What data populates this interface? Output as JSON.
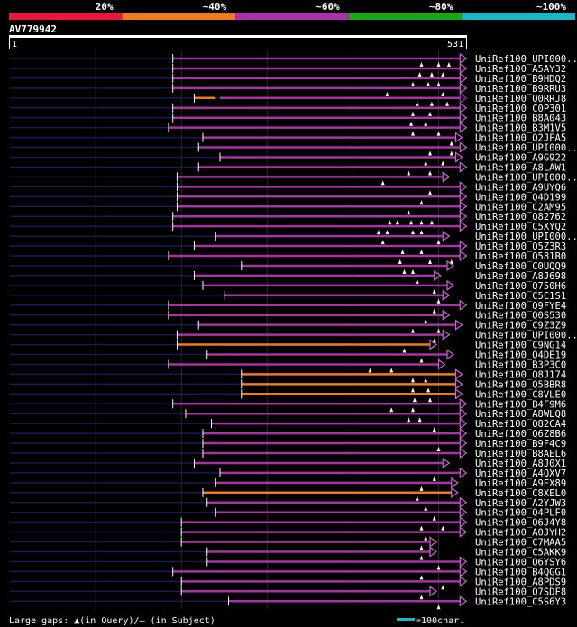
{
  "chart_data": {
    "type": "alignment-overview",
    "query_id": "AV779942",
    "query_start_label": "1",
    "query_end_label": "531",
    "query_length": 531,
    "identity_legend": [
      {
        "label": "20%",
        "color": "#e8173c"
      },
      {
        "label": "~40%",
        "color": "#f07a1e"
      },
      {
        "label": "~60%",
        "color": "#a832a8"
      },
      {
        "label": "~80%",
        "color": "#18a818"
      },
      {
        "label": "~100%",
        "color": "#18b8c8"
      }
    ],
    "hits": [
      {
        "name": "UniRef100_UPI000..",
        "start": 190,
        "end": 525,
        "identity_band": "~60%",
        "gaps": [
          480,
          500,
          512
        ]
      },
      {
        "name": "UniRef100_A5AY32",
        "start": 190,
        "end": 525,
        "identity_band": "~60%",
        "gaps": [
          478,
          492,
          505
        ]
      },
      {
        "name": "UniRef100_B9HDQ2",
        "start": 190,
        "end": 525,
        "identity_band": "~60%",
        "gaps": [
          470,
          488,
          500
        ]
      },
      {
        "name": "UniRef100_B9RRU3",
        "start": 190,
        "end": 525,
        "identity_band": "~60%",
        "gaps": [
          440,
          505
        ]
      },
      {
        "name": "UniRef100_Q0RRJ8",
        "start": 215,
        "end": 240,
        "identity_band": "~40%",
        "segments": [
          {
            "start": 245,
            "end": 525,
            "identity_band": "~60%"
          }
        ],
        "gaps": [
          475,
          492,
          510
        ]
      },
      {
        "name": "UniRef100_C0P301",
        "start": 190,
        "end": 525,
        "identity_band": "~60%",
        "gaps": [
          470,
          490
        ]
      },
      {
        "name": "UniRef100_B8A043",
        "start": 190,
        "end": 525,
        "identity_band": "~60%",
        "gaps": [
          468,
          485
        ]
      },
      {
        "name": "UniRef100_B3M1V5",
        "start": 185,
        "end": 525,
        "identity_band": "~60%",
        "gaps": [
          470,
          500
        ]
      },
      {
        "name": "UniRef100_Q2JFA5",
        "start": 225,
        "end": 520,
        "identity_band": "~60%",
        "gaps": [
          515
        ]
      },
      {
        "name": "UniRef100_UPI000..",
        "start": 220,
        "end": 525,
        "identity_band": "~60%",
        "gaps": [
          490,
          515
        ]
      },
      {
        "name": "UniRef100_A9G922",
        "start": 245,
        "end": 520,
        "identity_band": "~60%",
        "gaps": [
          485,
          505
        ]
      },
      {
        "name": "UniRef100_A8LAW1",
        "start": 220,
        "end": 525,
        "identity_band": "~60%",
        "gaps": [
          465,
          490
        ]
      },
      {
        "name": "UniRef100_UPI000..",
        "start": 195,
        "end": 505,
        "identity_band": "~60%",
        "gaps": [
          435
        ]
      },
      {
        "name": "UniRef100_A9UYQ6",
        "start": 195,
        "end": 525,
        "identity_band": "~60%",
        "gaps": [
          490
        ]
      },
      {
        "name": "UniRef100_Q4D199",
        "start": 195,
        "end": 525,
        "identity_band": "~60%",
        "gaps": [
          480
        ]
      },
      {
        "name": "UniRef100_C2AM95",
        "start": 195,
        "end": 525,
        "identity_band": "~60%",
        "gaps": [
          465
        ]
      },
      {
        "name": "UniRef100_Q82762",
        "start": 190,
        "end": 525,
        "identity_band": "~60%",
        "gaps": [
          443,
          452,
          468,
          480,
          492
        ]
      },
      {
        "name": "UniRef100_C5XYQ2",
        "start": 190,
        "end": 525,
        "identity_band": "~60%",
        "gaps": [
          430,
          440,
          470,
          480
        ]
      },
      {
        "name": "UniRef100_UPI000..",
        "start": 240,
        "end": 505,
        "identity_band": "~60%",
        "gaps": [
          435,
          500
        ]
      },
      {
        "name": "UniRef100_Q5Z3R3",
        "start": 215,
        "end": 525,
        "identity_band": "~60%",
        "gaps": [
          458,
          480
        ]
      },
      {
        "name": "UniRef100_Q581B0",
        "start": 185,
        "end": 525,
        "identity_band": "~60%",
        "gaps": [
          455,
          490,
          515
        ]
      },
      {
        "name": "UniRef100_C0UQQ9",
        "start": 270,
        "end": 510,
        "identity_band": "~60%",
        "gaps": [
          460,
          470
        ]
      },
      {
        "name": "UniRef100_A8J698",
        "start": 215,
        "end": 495,
        "identity_band": "~60%",
        "gaps": [
          475
        ]
      },
      {
        "name": "UniRef100_Q750H6",
        "start": 225,
        "end": 510,
        "identity_band": "~60%",
        "gaps": [
          495
        ]
      },
      {
        "name": "UniRef100_C5C1S1",
        "start": 250,
        "end": 505,
        "identity_band": "~60%",
        "gaps": [
          500
        ]
      },
      {
        "name": "UniRef100_Q9FYE4",
        "start": 185,
        "end": 525,
        "identity_band": "~60%",
        "gaps": [
          495
        ]
      },
      {
        "name": "UniRef100_Q0S530",
        "start": 185,
        "end": 505,
        "identity_band": "~60%",
        "gaps": [
          485
        ]
      },
      {
        "name": "UniRef100_C9Z3Z9",
        "start": 220,
        "end": 520,
        "identity_band": "~60%",
        "gaps": [
          470,
          500
        ]
      },
      {
        "name": "UniRef100_UPI000..",
        "start": 195,
        "end": 505,
        "identity_band": "~60%",
        "gaps": [
          495
        ]
      },
      {
        "name": "UniRef100_C9NG14",
        "start": 195,
        "end": 490,
        "identity_band": "~40%",
        "gaps": [
          460
        ]
      },
      {
        "name": "UniRef100_Q4DE19",
        "start": 230,
        "end": 510,
        "identity_band": "~60%",
        "gaps": [
          480
        ]
      },
      {
        "name": "UniRef100_B3P3C0",
        "start": 185,
        "end": 500,
        "identity_band": "~60%",
        "gaps": [
          420,
          445
        ]
      },
      {
        "name": "UniRef100_Q8J174",
        "start": 270,
        "end": 520,
        "identity_band": "~40%",
        "gaps": [
          470,
          485
        ]
      },
      {
        "name": "UniRef100_Q5BBR8",
        "start": 270,
        "end": 520,
        "identity_band": "~40%",
        "gaps": [
          470,
          488
        ]
      },
      {
        "name": "UniRef100_C8VLE0",
        "start": 270,
        "end": 520,
        "identity_band": "~40%",
        "gaps": [
          472,
          490
        ]
      },
      {
        "name": "UniRef100_B4F9M6",
        "start": 190,
        "end": 525,
        "identity_band": "~60%",
        "gaps": [
          445,
          470
        ]
      },
      {
        "name": "UniRef100_A8WLQ8",
        "start": 205,
        "end": 525,
        "identity_band": "~60%",
        "gaps": [
          465,
          478
        ]
      },
      {
        "name": "UniRef100_Q82CA4",
        "start": 235,
        "end": 525,
        "identity_band": "~60%",
        "gaps": [
          495
        ]
      },
      {
        "name": "UniRef100_Q6Z8B6",
        "start": 225,
        "end": 525,
        "identity_band": "~60%"
      },
      {
        "name": "UniRef100_B9F4C9",
        "start": 225,
        "end": 525,
        "identity_band": "~60%",
        "gaps": [
          500
        ]
      },
      {
        "name": "UniRef100_B8AEL6",
        "start": 225,
        "end": 525,
        "identity_band": "~60%"
      },
      {
        "name": "UniRef100_A8J0X1",
        "start": 215,
        "end": 505,
        "identity_band": "~60%"
      },
      {
        "name": "UniRef100_A4QXV7",
        "start": 245,
        "end": 525,
        "identity_band": "~60%",
        "gaps": [
          495
        ]
      },
      {
        "name": "UniRef100_A9EX89",
        "start": 240,
        "end": 515,
        "identity_band": "~60%",
        "gaps": [
          480
        ]
      },
      {
        "name": "UniRef100_C8XEL0",
        "start": 225,
        "end": 515,
        "identity_band": "~40%",
        "gaps": [
          475
        ]
      },
      {
        "name": "UniRef100_A2YJW3",
        "start": 230,
        "end": 525,
        "identity_band": "~60%",
        "gaps": [
          485
        ]
      },
      {
        "name": "UniRef100_Q4PLF0",
        "start": 240,
        "end": 525,
        "identity_band": "~60%",
        "gaps": [
          495
        ]
      },
      {
        "name": "UniRef100_Q6J4Y8",
        "start": 200,
        "end": 525,
        "identity_band": "~60%",
        "gaps": [
          480,
          505
        ]
      },
      {
        "name": "UniRef100_A0JYH2",
        "start": 200,
        "end": 525,
        "identity_band": "~60%",
        "gaps": [
          485
        ]
      },
      {
        "name": "UniRef100_C7MAA5",
        "start": 200,
        "end": 490,
        "identity_band": "~60%",
        "gaps": [
          480
        ]
      },
      {
        "name": "UniRef100_C5AKK9",
        "start": 230,
        "end": 490,
        "identity_band": "~60%",
        "gaps": [
          480
        ]
      },
      {
        "name": "UniRef100_Q6YSY6",
        "start": 230,
        "end": 525,
        "identity_band": "~60%",
        "gaps": [
          500
        ]
      },
      {
        "name": "UniRef100_B4QGG1",
        "start": 190,
        "end": 525,
        "identity_band": "~60%",
        "gaps": [
          480
        ]
      },
      {
        "name": "UniRef100_A8PDS9",
        "start": 200,
        "end": 525,
        "identity_band": "~60%",
        "gaps": [
          505
        ]
      },
      {
        "name": "UniRef100_Q7SDF8",
        "start": 200,
        "end": 490,
        "identity_band": "~60%",
        "gaps": [
          480
        ]
      },
      {
        "name": "UniRef100_C5S6Y3",
        "start": 255,
        "end": 525,
        "identity_band": "~60%",
        "gaps": [
          500
        ]
      }
    ],
    "footer": {
      "gaps_legend": "Large gaps: ▲(in Query)/– (in Subject)",
      "scale_legend": "=100char."
    }
  }
}
